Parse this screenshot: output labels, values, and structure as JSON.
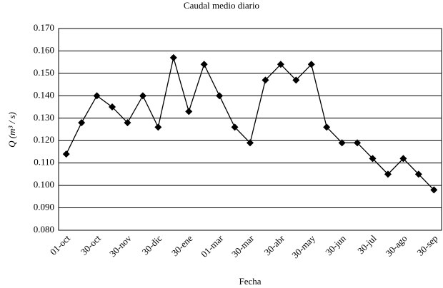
{
  "chart_data": {
    "type": "line",
    "title": "Caudal medio diario",
    "x_label": "Fecha",
    "y_label": "Q (m³ / s)",
    "categories": [
      "01-oct",
      null,
      "30-oct",
      null,
      "30-nov",
      null,
      "30-dic",
      null,
      "30-ene",
      null,
      "01-mar",
      null,
      "30-mar",
      null,
      "30-abr",
      null,
      "30-may",
      null,
      "30-jun",
      null,
      "30-jul",
      null,
      "30-ago",
      null,
      "30-sep"
    ],
    "values": [
      0.114,
      0.128,
      0.14,
      0.135,
      0.128,
      0.14,
      0.126,
      0.157,
      0.133,
      0.154,
      0.14,
      0.126,
      0.119,
      0.147,
      0.154,
      0.147,
      0.154,
      0.126,
      0.119,
      0.119,
      0.112,
      0.105,
      0.112,
      0.105,
      0.098
    ],
    "color": "#000000",
    "ylim": [
      0.08,
      0.17
    ],
    "yticks": [
      {
        "value": 0.08,
        "label": "0.080"
      },
      {
        "value": 0.09,
        "label": "0.090"
      },
      {
        "value": 0.1,
        "label": "0.100"
      },
      {
        "value": 0.11,
        "label": "0.110"
      },
      {
        "value": 0.12,
        "label": "0.120"
      },
      {
        "value": 0.13,
        "label": "0.130"
      },
      {
        "value": 0.14,
        "label": "0.140"
      },
      {
        "value": 0.15,
        "label": "0.150"
      },
      {
        "value": 0.16,
        "label": "0.160"
      },
      {
        "value": 0.17,
        "label": "0.170"
      }
    ],
    "grid": true
  }
}
